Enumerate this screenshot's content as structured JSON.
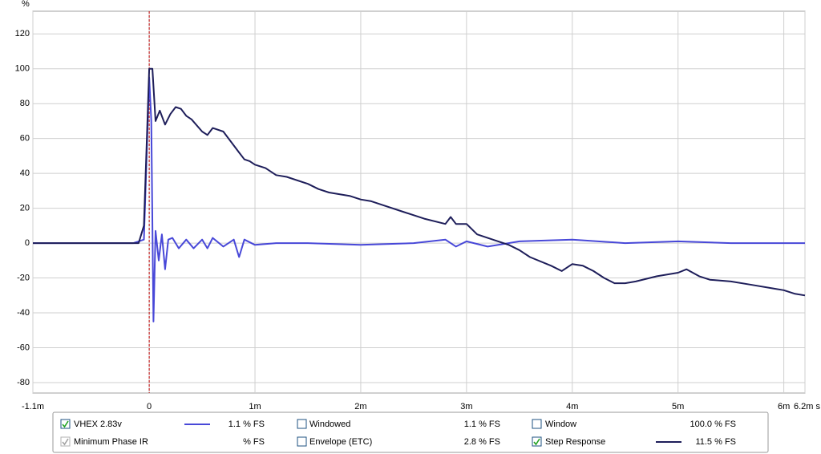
{
  "chart_data": {
    "type": "line",
    "y_unit_label": "%",
    "xlim": [
      -1.1,
      6.2
    ],
    "ylim": [
      -86,
      133
    ],
    "xticks": [
      {
        "value": -1.1,
        "label": "-1.1m"
      },
      0,
      {
        "value": 1,
        "label": "1m"
      },
      {
        "value": 2,
        "label": "2m"
      },
      {
        "value": 3,
        "label": "3m"
      },
      {
        "value": 4,
        "label": "4m"
      },
      {
        "value": 5,
        "label": "5m"
      },
      {
        "value": 6,
        "label": "6m"
      },
      {
        "value": 6.2,
        "label": "6.2m s"
      }
    ],
    "yticks": [
      -80,
      -60,
      -40,
      -20,
      0,
      20,
      40,
      60,
      80,
      100,
      120
    ],
    "grid": true,
    "reference_line": {
      "x": 0,
      "color": "#c00000"
    },
    "series": [
      {
        "name": "VHEX 2.83v",
        "color": "#4848d8",
        "x": [
          -1.1,
          -0.15,
          -0.1,
          -0.05,
          0,
          0.02,
          0.04,
          0.06,
          0.09,
          0.12,
          0.15,
          0.18,
          0.22,
          0.28,
          0.35,
          0.42,
          0.5,
          0.55,
          0.6,
          0.7,
          0.8,
          0.85,
          0.9,
          1.0,
          1.2,
          1.5,
          2.0,
          2.5,
          2.8,
          2.9,
          3.0,
          3.2,
          3.5,
          4.0,
          4.5,
          5.0,
          5.5,
          6.2
        ],
        "values": [
          0,
          0,
          1,
          2,
          95,
          70,
          -45,
          7,
          -10,
          5,
          -15,
          2,
          3,
          -3,
          2,
          -3,
          2,
          -3,
          3,
          -2,
          2,
          -8,
          2,
          -1,
          0,
          0,
          -1,
          0,
          2,
          -2,
          1,
          -2,
          1,
          2,
          0,
          1,
          0,
          0
        ]
      },
      {
        "name": "Step Response",
        "color": "#1e1e5a",
        "x": [
          -1.1,
          -0.1,
          -0.05,
          0,
          0.03,
          0.06,
          0.1,
          0.15,
          0.2,
          0.25,
          0.3,
          0.35,
          0.4,
          0.5,
          0.55,
          0.6,
          0.7,
          0.8,
          0.85,
          0.9,
          0.95,
          1.0,
          1.1,
          1.2,
          1.3,
          1.5,
          1.6,
          1.7,
          1.9,
          2.0,
          2.1,
          2.2,
          2.4,
          2.6,
          2.8,
          2.85,
          2.9,
          3.0,
          3.05,
          3.1,
          3.2,
          3.3,
          3.4,
          3.5,
          3.6,
          3.8,
          3.9,
          4.0,
          4.1,
          4.2,
          4.3,
          4.4,
          4.5,
          4.6,
          4.8,
          5.0,
          5.08,
          5.2,
          5.3,
          5.5,
          5.7,
          5.9,
          6.0,
          6.1,
          6.2
        ],
        "values": [
          0,
          0,
          10,
          100,
          100,
          70,
          76,
          68,
          74,
          78,
          77,
          73,
          71,
          64,
          62,
          66,
          64,
          56,
          52,
          48,
          47,
          45,
          43,
          39,
          38,
          34,
          31,
          29,
          27,
          25,
          24,
          22,
          18,
          14,
          11,
          15,
          11,
          11,
          8,
          5,
          3,
          1,
          -1,
          -4,
          -8,
          -13,
          -16,
          -12,
          -13,
          -16,
          -20,
          -23,
          -23,
          -22,
          -19,
          -17,
          -15,
          -19,
          -21,
          -22,
          -24,
          -26,
          -27,
          -29,
          -30
        ]
      }
    ],
    "legend_panel": [
      {
        "label": "VHEX 2.83v",
        "readout": "1.1 % FS",
        "checked": true,
        "enabled": true
      },
      {
        "label": "Windowed",
        "readout": "1.1 % FS",
        "checked": false,
        "enabled": true
      },
      {
        "label": "Window",
        "readout": "100.0 % FS",
        "checked": false,
        "enabled": true
      },
      {
        "label": "Minimum Phase IR",
        "readout": "% FS",
        "checked": true,
        "enabled": false
      },
      {
        "label": "Envelope (ETC)",
        "readout": "2.8 % FS",
        "checked": false,
        "enabled": true
      },
      {
        "label": "Step Response",
        "readout": "11.5 % FS",
        "checked": true,
        "enabled": true
      }
    ]
  }
}
